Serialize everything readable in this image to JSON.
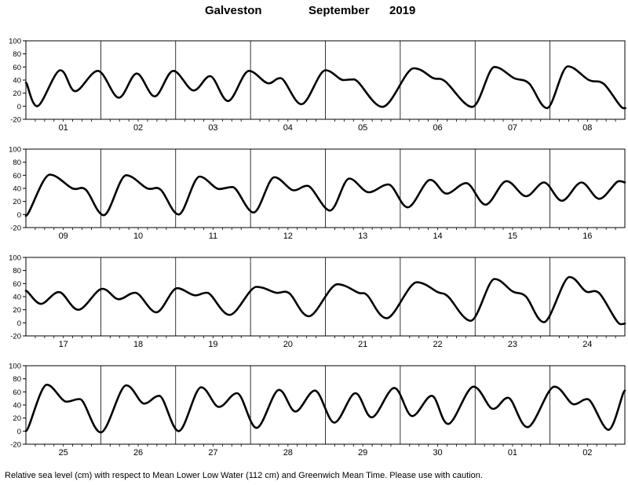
{
  "header": {
    "station": "Galveston",
    "month": "September",
    "year": "2019"
  },
  "footnote": "Relative sea level (cm) with respect to Mean Lower Low Water (112 cm) and Greenwich Mean Time. Please use with caution.",
  "chart_data": {
    "type": "line",
    "title": "Galveston September 2019",
    "y_ticks": [
      100,
      80,
      60,
      40,
      20,
      0,
      -20
    ],
    "ylim": [
      -20,
      100
    ],
    "grid": "vertical day lines",
    "colors": {
      "line": "#000000",
      "axes": "#000000"
    },
    "panels": [
      {
        "day_labels": [
          "01",
          "02",
          "03",
          "04",
          "05",
          "06",
          "07",
          "08"
        ],
        "points": [
          [
            0.0,
            36
          ],
          [
            0.15,
            0
          ],
          [
            0.46,
            55
          ],
          [
            0.66,
            23
          ],
          [
            0.96,
            54
          ],
          [
            1.24,
            13
          ],
          [
            1.48,
            50
          ],
          [
            1.72,
            15
          ],
          [
            1.97,
            54
          ],
          [
            2.24,
            24
          ],
          [
            2.46,
            46
          ],
          [
            2.7,
            8
          ],
          [
            2.98,
            54
          ],
          [
            3.24,
            35
          ],
          [
            3.4,
            43
          ],
          [
            3.68,
            3
          ],
          [
            4.0,
            55
          ],
          [
            4.24,
            40
          ],
          [
            4.38,
            41
          ],
          [
            4.76,
            -1
          ],
          [
            5.18,
            58
          ],
          [
            5.44,
            43
          ],
          [
            5.6,
            38
          ],
          [
            5.96,
            -1
          ],
          [
            6.26,
            60
          ],
          [
            6.52,
            43
          ],
          [
            6.72,
            35
          ],
          [
            6.96,
            -3
          ],
          [
            7.24,
            61
          ],
          [
            7.52,
            40
          ],
          [
            7.72,
            34
          ],
          [
            7.98,
            -3
          ],
          [
            8.0,
            -3
          ]
        ]
      },
      {
        "day_labels": [
          "09",
          "10",
          "11",
          "12",
          "13",
          "14",
          "15",
          "16"
        ],
        "points": [
          [
            0.0,
            -2
          ],
          [
            0.32,
            61
          ],
          [
            0.62,
            40
          ],
          [
            0.8,
            38
          ],
          [
            1.04,
            -1
          ],
          [
            1.34,
            60
          ],
          [
            1.62,
            40
          ],
          [
            1.8,
            38
          ],
          [
            2.04,
            0
          ],
          [
            2.32,
            58
          ],
          [
            2.58,
            39
          ],
          [
            2.76,
            42
          ],
          [
            3.04,
            3
          ],
          [
            3.32,
            57
          ],
          [
            3.58,
            37
          ],
          [
            3.76,
            44
          ],
          [
            4.06,
            6
          ],
          [
            4.32,
            55
          ],
          [
            4.58,
            34
          ],
          [
            4.84,
            46
          ],
          [
            5.1,
            11
          ],
          [
            5.4,
            53
          ],
          [
            5.62,
            32
          ],
          [
            5.88,
            48
          ],
          [
            6.14,
            15
          ],
          [
            6.42,
            51
          ],
          [
            6.68,
            28
          ],
          [
            6.92,
            49
          ],
          [
            7.16,
            21
          ],
          [
            7.42,
            49
          ],
          [
            7.66,
            24
          ],
          [
            7.92,
            51
          ],
          [
            8.0,
            49
          ]
        ]
      },
      {
        "day_labels": [
          "17",
          "18",
          "19",
          "20",
          "21",
          "22",
          "23",
          "24"
        ],
        "points": [
          [
            0.0,
            49
          ],
          [
            0.2,
            29
          ],
          [
            0.44,
            47
          ],
          [
            0.7,
            20
          ],
          [
            1.02,
            52
          ],
          [
            1.24,
            36
          ],
          [
            1.46,
            46
          ],
          [
            1.74,
            16
          ],
          [
            2.02,
            53
          ],
          [
            2.26,
            42
          ],
          [
            2.42,
            46
          ],
          [
            2.72,
            12
          ],
          [
            3.08,
            55
          ],
          [
            3.34,
            46
          ],
          [
            3.52,
            45
          ],
          [
            3.78,
            10
          ],
          [
            4.16,
            59
          ],
          [
            4.44,
            46
          ],
          [
            4.56,
            42
          ],
          [
            4.82,
            7
          ],
          [
            5.22,
            62
          ],
          [
            5.5,
            47
          ],
          [
            5.64,
            40
          ],
          [
            5.94,
            3
          ],
          [
            6.26,
            67
          ],
          [
            6.5,
            48
          ],
          [
            6.68,
            40
          ],
          [
            6.92,
            1
          ],
          [
            7.26,
            70
          ],
          [
            7.48,
            48
          ],
          [
            7.66,
            45
          ],
          [
            7.94,
            -2
          ],
          [
            8.0,
            -1
          ]
        ]
      },
      {
        "day_labels": [
          "25",
          "26",
          "27",
          "28",
          "29",
          "30",
          "01",
          "02"
        ],
        "points": [
          [
            0.0,
            0
          ],
          [
            0.28,
            71
          ],
          [
            0.54,
            45
          ],
          [
            0.72,
            49
          ],
          [
            1.0,
            -2
          ],
          [
            1.34,
            70
          ],
          [
            1.58,
            42
          ],
          [
            1.78,
            54
          ],
          [
            2.04,
            0
          ],
          [
            2.34,
            67
          ],
          [
            2.58,
            37
          ],
          [
            2.82,
            58
          ],
          [
            3.08,
            5
          ],
          [
            3.38,
            63
          ],
          [
            3.6,
            30
          ],
          [
            3.86,
            62
          ],
          [
            4.12,
            13
          ],
          [
            4.4,
            58
          ],
          [
            4.62,
            21
          ],
          [
            4.92,
            66
          ],
          [
            5.16,
            23
          ],
          [
            5.42,
            54
          ],
          [
            5.64,
            11
          ],
          [
            5.98,
            68
          ],
          [
            6.24,
            34
          ],
          [
            6.44,
            51
          ],
          [
            6.7,
            6
          ],
          [
            7.06,
            68
          ],
          [
            7.32,
            41
          ],
          [
            7.5,
            49
          ],
          [
            7.78,
            2
          ],
          [
            8.0,
            62
          ]
        ]
      }
    ]
  }
}
